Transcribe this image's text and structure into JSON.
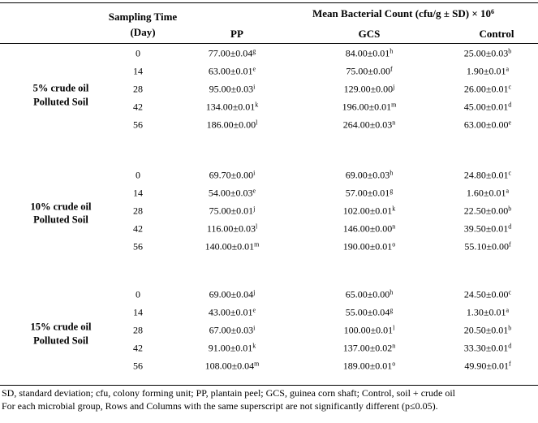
{
  "header": {
    "sampling_time": "Sampling Time",
    "day": "(Day)",
    "mean_count": "Mean Bacterial Count (cfu/g ± SD) × 10",
    "mean_count_exp": "6",
    "columns": [
      "PP",
      "GCS",
      "Control"
    ]
  },
  "groups": [
    {
      "label_line1": "5% crude oil",
      "label_line2": "Polluted Soil",
      "rows": [
        {
          "day": "0",
          "pp": "77.00±0.04",
          "pp_sup": "g",
          "gcs": "84.00±0.01",
          "gcs_sup": "h",
          "control": "25.00±0.03",
          "control_sup": "b"
        },
        {
          "day": "14",
          "pp": "63.00±0.01",
          "pp_sup": "e",
          "gcs": "75.00±0.00",
          "gcs_sup": "f",
          "control": "1.90±0.01",
          "control_sup": "a"
        },
        {
          "day": "28",
          "pp": "95.00±0.03",
          "pp_sup": "i",
          "gcs": "129.00±0.00",
          "gcs_sup": "j",
          "control": "26.00±0.01",
          "control_sup": "c"
        },
        {
          "day": "42",
          "pp": "134.00±0.01",
          "pp_sup": "k",
          "gcs": "196.00±0.01",
          "gcs_sup": "m",
          "control": "45.00±0.01",
          "control_sup": "d"
        },
        {
          "day": "56",
          "pp": "186.00±0.00",
          "pp_sup": "l",
          "gcs": "264.00±0.03",
          "gcs_sup": "n",
          "control": "63.00±0.00",
          "control_sup": "e"
        }
      ]
    },
    {
      "label_line1": "10% crude oil",
      "label_line2": "Polluted Soil",
      "rows": [
        {
          "day": "0",
          "pp": "69.70±0.00",
          "pp_sup": "i",
          "gcs": "69.00±0.03",
          "gcs_sup": "h",
          "control": "24.80±0.01",
          "control_sup": "c"
        },
        {
          "day": "14",
          "pp": "54.00±0.03",
          "pp_sup": "e",
          "gcs": "57.00±0.01",
          "gcs_sup": "g",
          "control": "1.60±0.01",
          "control_sup": "a"
        },
        {
          "day": "28",
          "pp": "75.00±0.01",
          "pp_sup": "j",
          "gcs": "102.00±0.01",
          "gcs_sup": "k",
          "control": "22.50±0.00",
          "control_sup": "b"
        },
        {
          "day": "42",
          "pp": "116.00±0.03",
          "pp_sup": "l",
          "gcs": "146.00±0.00",
          "gcs_sup": "n",
          "control": "39.50±0.01",
          "control_sup": "d"
        },
        {
          "day": "56",
          "pp": "140.00±0.01",
          "pp_sup": "m",
          "gcs": "190.00±0.01",
          "gcs_sup": "o",
          "control": "55.10±0.00",
          "control_sup": "f"
        }
      ]
    },
    {
      "label_line1": "15% crude oil",
      "label_line2": "Polluted Soil",
      "rows": [
        {
          "day": "0",
          "pp": "69.00±0.04",
          "pp_sup": "j",
          "gcs": "65.00±0.00",
          "gcs_sup": "h",
          "control": "24.50±0.00",
          "control_sup": "c"
        },
        {
          "day": "14",
          "pp": "43.00±0.01",
          "pp_sup": "e",
          "gcs": "55.00±0.04",
          "gcs_sup": "g",
          "control": "1.30±0.01",
          "control_sup": "a"
        },
        {
          "day": "28",
          "pp": "67.00±0.03",
          "pp_sup": "i",
          "gcs": "100.00±0.01",
          "gcs_sup": "l",
          "control": "20.50±0.01",
          "control_sup": "b"
        },
        {
          "day": "42",
          "pp": "91.00±0.01",
          "pp_sup": "k",
          "gcs": "137.00±0.02",
          "gcs_sup": "n",
          "control": "33.30±0.01",
          "control_sup": "d"
        },
        {
          "day": "56",
          "pp": "108.00±0.04",
          "pp_sup": "m",
          "gcs": "189.00±0.01",
          "gcs_sup": "o",
          "control": "49.90±0.01",
          "control_sup": "f"
        }
      ]
    }
  ],
  "footnotes": [
    "SD, standard deviation; cfu, colony forming unit; PP, plantain peel; GCS, guinea corn shaft; Control, soil + crude oil",
    "For each microbial group, Rows and Columns with the same superscript are not significantly different (p≤0.05)."
  ]
}
